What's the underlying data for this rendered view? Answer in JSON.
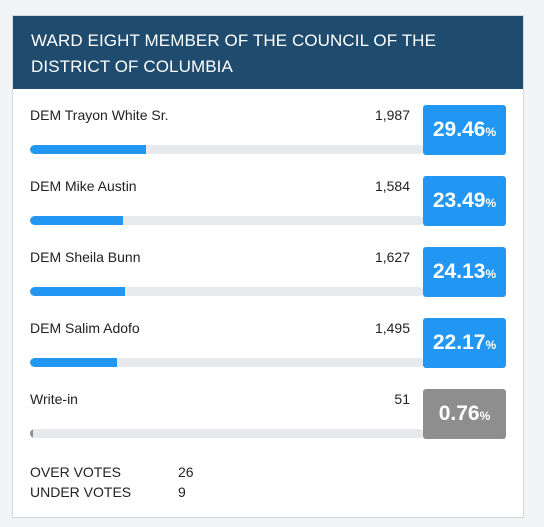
{
  "contest": {
    "title": "WARD EIGHT MEMBER OF THE COUNCIL OF THE DISTRICT OF COLUMBIA"
  },
  "candidates": [
    {
      "name": "DEM Trayon White Sr.",
      "votes": "1,987",
      "percent": "29.46",
      "share": 0.2946,
      "color": "#2196f3"
    },
    {
      "name": "DEM Mike Austin",
      "votes": "1,584",
      "percent": "23.49",
      "share": 0.2349,
      "color": "#2196f3"
    },
    {
      "name": "DEM Sheila Bunn",
      "votes": "1,627",
      "percent": "24.13",
      "share": 0.2413,
      "color": "#2196f3"
    },
    {
      "name": "DEM Salim Adofo",
      "votes": "1,495",
      "percent": "22.17",
      "share": 0.2217,
      "color": "#2196f3"
    },
    {
      "name": "Write-in",
      "votes": "51",
      "percent": "0.76",
      "share": 0.0076,
      "color": "#8e8e8e"
    }
  ],
  "percent_symbol": "%",
  "summary": {
    "over_votes_label": "OVER VOTES",
    "over_votes": "26",
    "under_votes_label": "UNDER VOTES",
    "under_votes": "9"
  },
  "colors": {
    "header_bg": "#1f4b6e",
    "accent": "#2196f3",
    "write_in": "#8e8e8e",
    "bar_track": "#e7e9ec"
  }
}
